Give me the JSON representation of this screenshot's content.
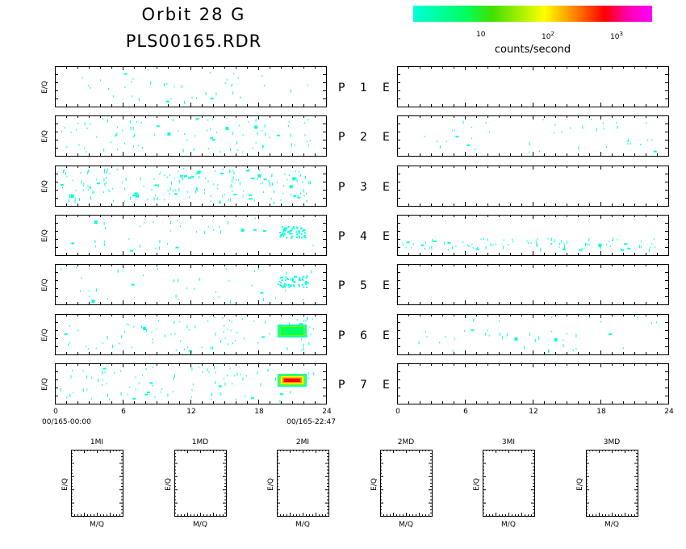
{
  "title_line1": "Orbit 28 G",
  "title_line2": "PLS00165.RDR",
  "colorbar": {
    "label": "counts/second",
    "ticks": [
      {
        "label": "10",
        "sup": ""
      },
      {
        "label": "10",
        "sup": "2"
      },
      {
        "label": "10",
        "sup": "3"
      }
    ],
    "colors": [
      "#00ffd8",
      "#00ff60",
      "#ffff00",
      "#ff8000",
      "#ff0000",
      "#ff00ff"
    ]
  },
  "panel_ylabel": "E/Q",
  "rows": [
    {
      "label": "P 1 E"
    },
    {
      "label": "P 2 E"
    },
    {
      "label": "P 3 E"
    },
    {
      "label": "P 4 E"
    },
    {
      "label": "P 5 E"
    },
    {
      "label": "P 6 E"
    },
    {
      "label": "P 7 E"
    }
  ],
  "xaxis": {
    "ticks": [
      "0",
      "6",
      "12",
      "18",
      "24"
    ],
    "start_label": "00/165-00:00",
    "end_label": "00/165-22:47"
  },
  "boxes": {
    "titles": [
      "1MI",
      "1MD",
      "2MI",
      "2MD",
      "3MI",
      "3MD"
    ],
    "ylabel": "E/Q",
    "xlabel": "M/Q"
  },
  "chart_data": {
    "type": "heatmap",
    "x_range": [
      0,
      24
    ],
    "x_unit": "hours",
    "left_column": [
      {
        "row": "P 1",
        "density": "sparse",
        "intense": []
      },
      {
        "row": "P 2",
        "density": "moderate",
        "intense": []
      },
      {
        "row": "P 3",
        "density": "dense",
        "intense": []
      },
      {
        "row": "P 4",
        "density": "sparse",
        "intense": [
          {
            "x": [
              19.8,
              22.2
            ],
            "level": "low"
          }
        ]
      },
      {
        "row": "P 5",
        "density": "sparse",
        "intense": [
          {
            "x": [
              19.7,
              22.3
            ],
            "level": "low"
          }
        ]
      },
      {
        "row": "P 6",
        "density": "moderate",
        "intense": [
          {
            "x": [
              19.7,
              22.3
            ],
            "level": "medium"
          }
        ]
      },
      {
        "row": "P 7",
        "density": "moderate",
        "intense": [
          {
            "x": [
              19.7,
              22.3
            ],
            "level": "high"
          }
        ]
      }
    ],
    "right_column": [
      {
        "row": "P 1",
        "density": "empty"
      },
      {
        "row": "P 2",
        "density": "sparse"
      },
      {
        "row": "P 3",
        "density": "empty"
      },
      {
        "row": "P 4",
        "density": "moderate"
      },
      {
        "row": "P 5",
        "density": "empty"
      },
      {
        "row": "P 6",
        "density": "sparse"
      },
      {
        "row": "P 7",
        "density": "empty"
      }
    ]
  }
}
